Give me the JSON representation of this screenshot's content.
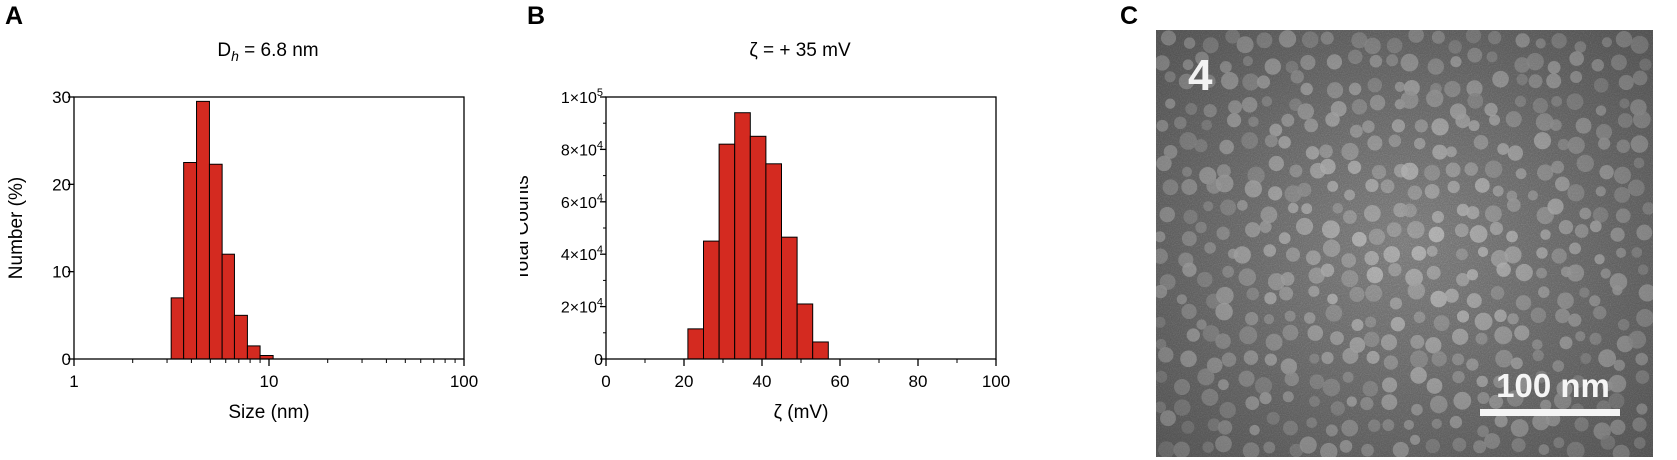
{
  "panels": {
    "a": {
      "letter": "A"
    },
    "b": {
      "letter": "B"
    },
    "c": {
      "letter": "C"
    }
  },
  "chart_data": [
    {
      "type": "bar",
      "title_main": "D",
      "title_sub": "h",
      "title_rest": " = 6.8 nm",
      "xlabel": "Size (nm)",
      "ylabel": "Number (%)",
      "xscale": "log",
      "xlim": [
        1,
        100
      ],
      "ylim": [
        0,
        30
      ],
      "xticks": [
        "1",
        "10",
        "100"
      ],
      "yticks": [
        "0",
        "10",
        "20",
        "30"
      ],
      "bar_color": "#d42a20",
      "bins": [
        {
          "x0": 3.15,
          "x1": 3.65,
          "value": 7
        },
        {
          "x0": 3.65,
          "x1": 4.25,
          "value": 22.5
        },
        {
          "x0": 4.25,
          "x1": 4.95,
          "value": 29.5
        },
        {
          "x0": 4.95,
          "x1": 5.75,
          "value": 22.3
        },
        {
          "x0": 5.75,
          "x1": 6.65,
          "value": 12
        },
        {
          "x0": 6.65,
          "x1": 7.75,
          "value": 5
        },
        {
          "x0": 7.75,
          "x1": 9.0,
          "value": 1.5
        },
        {
          "x0": 9.0,
          "x1": 10.5,
          "value": 0.4
        }
      ]
    },
    {
      "type": "bar",
      "title": "ζ = + 35 mV",
      "xlabel": "ζ (mV)",
      "ylabel": "Total Counts",
      "xlim": [
        0,
        100
      ],
      "ylim": [
        0,
        100000
      ],
      "xticks": [
        "0",
        "20",
        "40",
        "60",
        "80",
        "100"
      ],
      "yticks": [
        {
          "value": 0,
          "base": "0",
          "exp": ""
        },
        {
          "value": 20000,
          "base": "2×10",
          "exp": "4"
        },
        {
          "value": 40000,
          "base": "4×10",
          "exp": "4"
        },
        {
          "value": 60000,
          "base": "6×10",
          "exp": "4"
        },
        {
          "value": 80000,
          "base": "8×10",
          "exp": "4"
        },
        {
          "value": 100000,
          "base": "1×10",
          "exp": "5"
        }
      ],
      "bar_color": "#d42a20",
      "bins": [
        {
          "x0": 21,
          "x1": 25,
          "value": 11500
        },
        {
          "x0": 25,
          "x1": 29,
          "value": 45000
        },
        {
          "x0": 29,
          "x1": 33,
          "value": 82000
        },
        {
          "x0": 33,
          "x1": 37,
          "value": 94000
        },
        {
          "x0": 37,
          "x1": 41,
          "value": 85000
        },
        {
          "x0": 41,
          "x1": 45,
          "value": 74500
        },
        {
          "x0": 45,
          "x1": 49,
          "value": 46500
        },
        {
          "x0": 49,
          "x1": 53,
          "value": 21000
        },
        {
          "x0": 53,
          "x1": 57,
          "value": 6500
        }
      ]
    }
  ],
  "tem": {
    "label": "4",
    "scale_bar_label": "100 nm"
  }
}
